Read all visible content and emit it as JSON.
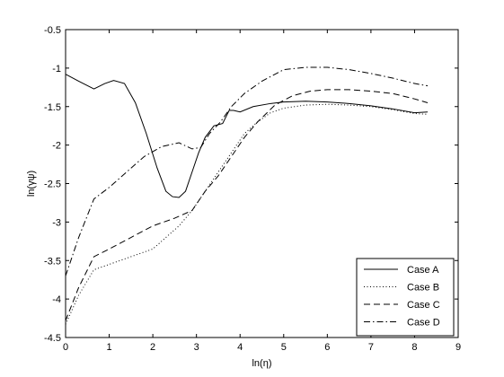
{
  "chart_data": {
    "type": "line",
    "xlabel": "ln(η)",
    "ylabel": "ln(γψ)",
    "xlim": [
      0,
      9
    ],
    "ylim": [
      -4.5,
      -0.5
    ],
    "xticks": [
      0,
      1,
      2,
      3,
      4,
      5,
      6,
      7,
      8,
      9
    ],
    "yticks": [
      -0.5,
      -1,
      -1.5,
      -2,
      -2.5,
      -3,
      -3.5,
      -4,
      -4.5
    ],
    "grid": false,
    "legend_position": "bottom-right",
    "series": [
      {
        "name": "Case A",
        "style": "solid",
        "x": [
          0,
          0.3,
          0.65,
          0.9,
          1.1,
          1.35,
          1.6,
          1.85,
          2.1,
          2.3,
          2.45,
          2.6,
          2.75,
          2.9,
          3.05,
          3.2,
          3.4,
          3.6,
          3.75,
          3.85,
          4.0,
          4.3,
          4.7,
          5.0,
          5.5,
          6.0,
          6.5,
          7.0,
          7.5,
          8.0,
          8.3
        ],
        "y": [
          -1.08,
          -1.17,
          -1.27,
          -1.2,
          -1.16,
          -1.2,
          -1.45,
          -1.85,
          -2.3,
          -2.6,
          -2.67,
          -2.68,
          -2.6,
          -2.35,
          -2.1,
          -1.9,
          -1.75,
          -1.72,
          -1.55,
          -1.55,
          -1.57,
          -1.5,
          -1.46,
          -1.44,
          -1.43,
          -1.44,
          -1.46,
          -1.49,
          -1.53,
          -1.58,
          -1.57
        ]
      },
      {
        "name": "Case B",
        "style": "dotted",
        "x": [
          0,
          0.3,
          0.65,
          1.0,
          1.5,
          2.0,
          2.3,
          2.6,
          2.9,
          3.2,
          3.5,
          3.8,
          4.1,
          4.4,
          4.7,
          5.0,
          5.5,
          6.0,
          6.5,
          7.0,
          7.5,
          8.0,
          8.3
        ],
        "y": [
          -4.33,
          -3.95,
          -3.62,
          -3.55,
          -3.45,
          -3.35,
          -3.2,
          -3.05,
          -2.85,
          -2.6,
          -2.35,
          -2.1,
          -1.85,
          -1.7,
          -1.58,
          -1.52,
          -1.48,
          -1.47,
          -1.48,
          -1.5,
          -1.54,
          -1.59,
          -1.6
        ]
      },
      {
        "name": "Case C",
        "style": "dashed",
        "x": [
          0,
          0.3,
          0.65,
          1.0,
          1.5,
          2.0,
          2.5,
          2.9,
          3.2,
          3.5,
          3.8,
          4.1,
          4.4,
          4.8,
          5.2,
          5.6,
          6.0,
          6.5,
          7.0,
          7.5,
          8.0,
          8.3
        ],
        "y": [
          -4.28,
          -3.85,
          -3.45,
          -3.35,
          -3.2,
          -3.05,
          -2.95,
          -2.85,
          -2.6,
          -2.4,
          -2.15,
          -1.9,
          -1.7,
          -1.48,
          -1.36,
          -1.3,
          -1.28,
          -1.28,
          -1.3,
          -1.33,
          -1.4,
          -1.45
        ]
      },
      {
        "name": "Case D",
        "style": "dashdot",
        "x": [
          0,
          0.3,
          0.65,
          1.0,
          1.4,
          1.8,
          2.2,
          2.6,
          2.9,
          3.1,
          3.3,
          3.55,
          3.8,
          4.1,
          4.5,
          5.0,
          5.5,
          6.0,
          6.5,
          7.0,
          7.5,
          8.0,
          8.3
        ],
        "y": [
          -3.7,
          -3.2,
          -2.7,
          -2.55,
          -2.35,
          -2.15,
          -2.02,
          -1.97,
          -2.05,
          -2.03,
          -1.85,
          -1.7,
          -1.5,
          -1.33,
          -1.17,
          -1.02,
          -0.99,
          -0.99,
          -1.02,
          -1.07,
          -1.13,
          -1.2,
          -1.23
        ]
      }
    ]
  }
}
